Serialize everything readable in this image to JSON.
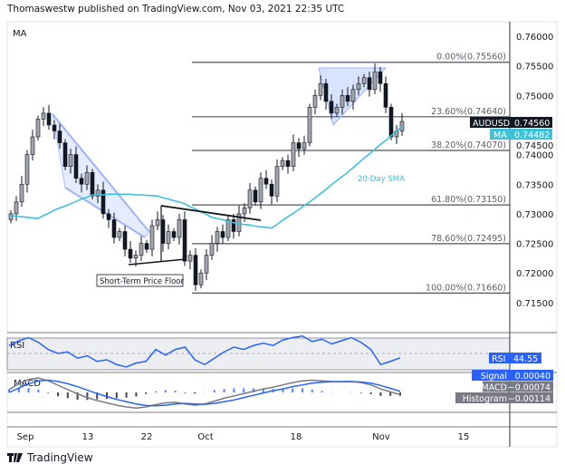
{
  "header": {
    "published": "Thomaswestw published on TradingView.com, Nov 03, 2021 22:35 UTC"
  },
  "footer": {
    "logo_text": "TradingView"
  },
  "colors": {
    "sma": "#3fc1d9",
    "rsi": "#2962ff",
    "macd": "#787b86",
    "signal": "#2962ff",
    "channel": "#2962ff",
    "up": "#ffffff",
    "down": "#131722"
  },
  "chart_data": {
    "type": "candlestick",
    "symbol": "AUDUSD",
    "pane_label": "MA",
    "price_axis": {
      "ticks": [
        "0.76000",
        "0.75500",
        "0.75000",
        "0.74500",
        "0.74000",
        "0.73500",
        "0.73000",
        "0.72500",
        "0.72000",
        "0.71500"
      ],
      "ylim": [
        0.7125,
        0.7625
      ]
    },
    "time_axis": {
      "ticks": [
        "Sep",
        "13",
        "22",
        "Oct",
        "18",
        "Nov",
        "15"
      ]
    },
    "last_price": {
      "label": "AUDUSD",
      "value": "0.74560"
    },
    "ma_value": {
      "label": "MA",
      "value": "0.74482"
    },
    "close": [
      0.73,
      0.732,
      0.735,
      0.74,
      0.743,
      0.746,
      0.747,
      0.745,
      0.744,
      0.742,
      0.738,
      0.74,
      0.736,
      0.735,
      0.737,
      0.733,
      0.734,
      0.73,
      0.729,
      0.726,
      0.727,
      0.724,
      0.7225,
      0.723,
      0.725,
      0.724,
      0.728,
      0.729,
      0.725,
      0.727,
      0.726,
      0.729,
      0.722,
      0.723,
      0.718,
      0.72,
      0.723,
      0.725,
      0.727,
      0.726,
      0.729,
      0.727,
      0.73,
      0.731,
      0.734,
      0.732,
      0.736,
      0.735,
      0.733,
      0.738,
      0.739,
      0.738,
      0.742,
      0.741,
      0.742,
      0.748,
      0.75,
      0.752,
      0.749,
      0.747,
      0.748,
      0.75,
      0.749,
      0.751,
      0.752,
      0.753,
      0.751,
      0.754,
      0.752,
      0.748,
      0.743,
      0.744,
      0.7456
    ],
    "sma20": [
      0.7297,
      0.7296,
      0.7295,
      0.7294,
      0.7293,
      0.7292,
      0.7297,
      0.7301,
      0.7306,
      0.731,
      0.7313,
      0.7317,
      0.7321,
      0.7325,
      0.7328,
      0.7332,
      0.7332,
      0.7332,
      0.7333,
      0.7333,
      0.7333,
      0.7333,
      0.7333,
      0.7332,
      0.7332,
      0.7331,
      0.7331,
      0.733,
      0.7327,
      0.7325,
      0.7322,
      0.732,
      0.7317,
      0.7312,
      0.7308,
      0.7303,
      0.7299,
      0.7294,
      0.7292,
      0.729,
      0.7287,
      0.7285,
      0.7283,
      0.7282,
      0.7281,
      0.7279,
      0.7278,
      0.7277,
      0.7276,
      0.7282,
      0.7289,
      0.7295,
      0.7301,
      0.7307,
      0.7314,
      0.732,
      0.7327,
      0.7334,
      0.7341,
      0.7349,
      0.7356,
      0.7363,
      0.737,
      0.7378,
      0.7386,
      0.7394,
      0.7401,
      0.7409,
      0.7417,
      0.7424,
      0.7432,
      0.744,
      0.7448
    ],
    "fibonacci": [
      {
        "label": "0.00%(0.75560)",
        "value": 0.7556
      },
      {
        "label": "23.60%(0.74640)",
        "value": 0.7464
      },
      {
        "label": "38.20%(0.74070)",
        "value": 0.7407
      },
      {
        "label": "61.80%(0.73150)",
        "value": 0.7315
      },
      {
        "label": "78.60%(0.72495)",
        "value": 0.72495
      },
      {
        "label": "100.00%(0.71660)",
        "value": 0.7166
      }
    ],
    "annotations": {
      "floor": "Short-Term Price Floor",
      "sma": "20-Day SMA"
    },
    "rsi": {
      "label": "RSI",
      "value": "44.55",
      "bands": [
        30,
        50,
        70
      ],
      "values": [
        60,
        66,
        70,
        64,
        55,
        50,
        52,
        44,
        47,
        40,
        42,
        36,
        33,
        38,
        40,
        55,
        48,
        55,
        58,
        42,
        36,
        44,
        52,
        58,
        55,
        60,
        63,
        60,
        67,
        70,
        72,
        65,
        68,
        62,
        66,
        70,
        64,
        55,
        36,
        40,
        44.55
      ]
    },
    "macd": {
      "label": "MACD",
      "legend": [
        {
          "label": "Signal",
          "value": "0.00040"
        },
        {
          "label": "MACD",
          "value": "-0.00074"
        },
        {
          "label": "Histogram",
          "value": "-0.00114"
        }
      ],
      "macd": [
        0.001,
        0.003,
        0.0045,
        0.005,
        0.004,
        0.0025,
        0.001,
        -0.0005,
        -0.0018,
        -0.0028,
        -0.0036,
        -0.0044,
        -0.005,
        -0.0054,
        -0.005,
        -0.0042,
        -0.0036,
        -0.0034,
        -0.004,
        -0.0044,
        -0.004,
        -0.003,
        -0.002,
        -0.0012,
        -0.0004,
        0.0004,
        0.0012,
        0.0018,
        0.0026,
        0.0034,
        0.004,
        0.0042,
        0.004,
        0.0038,
        0.0037,
        0.0038,
        0.0034,
        0.0026,
        0.0012,
        0.0002,
        -0.00074
      ],
      "signal": [
        0.0,
        0.0015,
        0.003,
        0.004,
        0.0042,
        0.0038,
        0.003,
        0.002,
        0.0008,
        -0.0004,
        -0.0014,
        -0.0024,
        -0.0032,
        -0.004,
        -0.0045,
        -0.0046,
        -0.0044,
        -0.004,
        -0.0038,
        -0.004,
        -0.0041,
        -0.0038,
        -0.0032,
        -0.0026,
        -0.0018,
        -0.001,
        -0.0002,
        0.0006,
        0.0012,
        0.002,
        0.0026,
        0.0032,
        0.0035,
        0.0037,
        0.0037,
        0.0037,
        0.0036,
        0.0032,
        0.0024,
        0.0014,
        0.0004
      ]
    }
  }
}
